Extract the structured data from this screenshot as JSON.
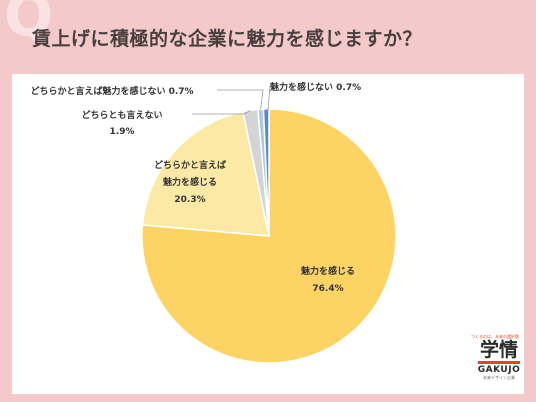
{
  "header": {
    "q_mark": "Q",
    "title": "賃上げに積極的な企業に魅力を感じますか？"
  },
  "logo": {
    "tagline": "つくるのは、未来の選択肢",
    "mark": "学情",
    "name": "GAKUJO",
    "subtitle": "未来デザイン企業"
  },
  "chart_data": {
    "type": "pie",
    "slices": [
      {
        "label": "魅力を感じる",
        "value": 76.4,
        "value_label": "76.4%",
        "color": "#fdd363"
      },
      {
        "label": "どちらかと言えば魅力を感じる",
        "value": 20.3,
        "value_label": "20.3%",
        "color": "#fde9a6"
      },
      {
        "label": "どちらとも言えない",
        "value": 1.9,
        "value_label": "1.9%",
        "color": "#d4d4d4"
      },
      {
        "label": "どちらかと言えば魅力を感じない",
        "value": 0.7,
        "value_label": "0.7%",
        "color": "#a9c9e6"
      },
      {
        "label": "魅力を感じない",
        "value": 0.7,
        "value_label": "0.7%",
        "color": "#5b8ac2"
      }
    ],
    "legend": "none",
    "data_labels": "on-slice-or-callout"
  }
}
